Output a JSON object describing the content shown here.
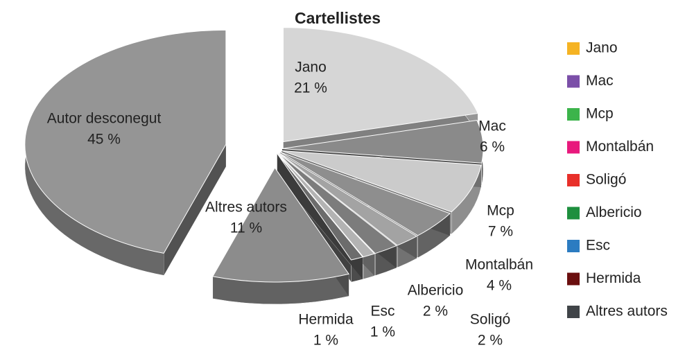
{
  "chart_data": {
    "type": "pie",
    "title": "Cartellistes",
    "categories": [
      "Jano",
      "Mac",
      "Mcp",
      "Montalbán",
      "Soligó",
      "Albericio",
      "Esc",
      "Hermida",
      "Altres autors",
      "Autor desconegut"
    ],
    "values": [
      21,
      6,
      7,
      4,
      2,
      2,
      1,
      1,
      11,
      45
    ],
    "value_labels": [
      "21 %",
      "6 %",
      "7 %",
      "4 %",
      "2 %",
      "2 %",
      "1 %",
      "1 %",
      "11 %",
      "45 %"
    ],
    "slice_colors": [
      "#d6d6d6",
      "#8a8a8a",
      "#cbcbcb",
      "#8e8e8e",
      "#a3a3a3",
      "#7c7c7c",
      "#b3b3b3",
      "#6c6c6c",
      "#8c8c8c",
      "#959595"
    ],
    "legend_colors": [
      "#f5b323",
      "#7b4fa8",
      "#3cb44b",
      "#e8197d",
      "#e8302a",
      "#1e8f3e",
      "#2c7cc1",
      "#6b0f0f",
      "#404448"
    ],
    "legend": "right"
  }
}
